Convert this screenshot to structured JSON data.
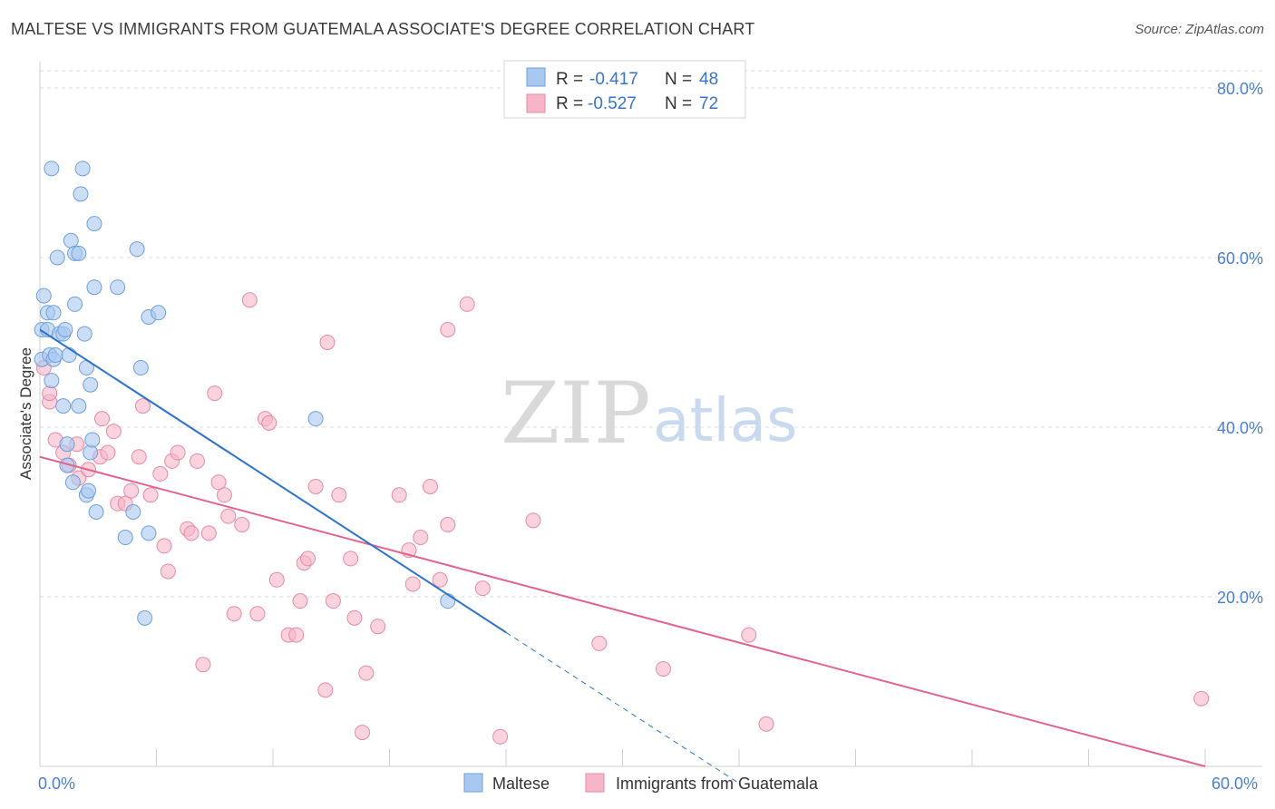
{
  "header": {
    "title": "MALTESE VS IMMIGRANTS FROM GUATEMALA ASSOCIATE'S DEGREE CORRELATION CHART",
    "source": "Source: ZipAtlas.com"
  },
  "watermark": {
    "zip": "ZIP",
    "atlas": "atlas"
  },
  "stats_box": {
    "rows": [
      {
        "r_label": "R =",
        "r_value": "-0.417",
        "n_label": "N =",
        "n_value": "48",
        "color": "#a9c8f0"
      },
      {
        "r_label": "R =",
        "r_value": "-0.527",
        "n_label": "N =",
        "n_value": "72",
        "color": "#f6b6c8"
      }
    ]
  },
  "colors": {
    "maltese_fill": "#a9c8f0",
    "maltese_stroke": "#6f9fdc",
    "maltese_line": "#2f72c9",
    "guatemala_fill": "#f6b6c8",
    "guatemala_stroke": "#e58aa7",
    "guatemala_line": "#e0648e",
    "tick_label": "#4a7fcf",
    "grid": "#dcdcdc"
  },
  "chart_data": {
    "type": "scatter",
    "title": "MALTESE VS IMMIGRANTS FROM GUATEMALA ASSOCIATE'S DEGREE CORRELATION CHART",
    "xlabel": "",
    "ylabel": "Associate's Degree",
    "xlim": [
      0,
      60
    ],
    "ylim": [
      0,
      80
    ],
    "x_tick_labels": [
      "0.0%",
      "60.0%"
    ],
    "y_tick_values": [
      20,
      40,
      60,
      80
    ],
    "y_tick_labels": [
      "20.0%",
      "40.0%",
      "60.0%",
      "80.0%"
    ],
    "grid": "horizontal dashed",
    "legend_position": "bottom-center",
    "series": [
      {
        "name": "Maltese",
        "R": -0.417,
        "N": 48,
        "trend": {
          "x_start": 0,
          "y_start": 51.5,
          "x_end": 24,
          "y_end": 15.8,
          "dashed_to_x": 36,
          "dashed_to_y": -2
        },
        "points": [
          [
            0.1,
            48.0
          ],
          [
            0.1,
            51.5
          ],
          [
            0.2,
            55.5
          ],
          [
            0.4,
            53.5
          ],
          [
            0.4,
            51.5
          ],
          [
            0.5,
            48.5
          ],
          [
            0.6,
            45.5
          ],
          [
            0.7,
            53.5
          ],
          [
            0.7,
            48.0
          ],
          [
            0.8,
            48.5
          ],
          [
            0.9,
            60.0
          ],
          [
            1.0,
            51.0
          ],
          [
            1.2,
            51.0
          ],
          [
            1.2,
            42.5
          ],
          [
            1.3,
            51.5
          ],
          [
            1.4,
            38.0
          ],
          [
            1.4,
            35.5
          ],
          [
            1.5,
            48.5
          ],
          [
            1.6,
            62.0
          ],
          [
            1.7,
            33.5
          ],
          [
            1.8,
            54.5
          ],
          [
            1.8,
            60.5
          ],
          [
            2.0,
            60.5
          ],
          [
            2.0,
            42.5
          ],
          [
            2.1,
            67.5
          ],
          [
            2.2,
            70.5
          ],
          [
            2.3,
            51.0
          ],
          [
            2.4,
            47.0
          ],
          [
            2.4,
            32.0
          ],
          [
            2.5,
            32.5
          ],
          [
            2.6,
            37.0
          ],
          [
            2.6,
            45.0
          ],
          [
            2.7,
            38.5
          ],
          [
            2.8,
            64.0
          ],
          [
            2.8,
            56.5
          ],
          [
            2.9,
            30.0
          ],
          [
            4.0,
            56.5
          ],
          [
            4.4,
            27.0
          ],
          [
            4.8,
            30.0
          ],
          [
            5.0,
            61.0
          ],
          [
            5.2,
            47.0
          ],
          [
            5.4,
            17.5
          ],
          [
            5.6,
            27.5
          ],
          [
            5.6,
            53.0
          ],
          [
            6.1,
            53.5
          ],
          [
            14.2,
            41.0
          ],
          [
            21.0,
            19.5
          ],
          [
            0.6,
            70.5
          ]
        ]
      },
      {
        "name": "Immigrants from Guatemala",
        "R": -0.527,
        "N": 72,
        "trend": {
          "x_start": 0,
          "y_start": 36.5,
          "x_end": 60,
          "y_end": 0
        },
        "points": [
          [
            0.2,
            47.0
          ],
          [
            0.5,
            43.0
          ],
          [
            0.8,
            38.5
          ],
          [
            1.2,
            37.0
          ],
          [
            1.5,
            35.5
          ],
          [
            1.9,
            38.0
          ],
          [
            2.0,
            34.0
          ],
          [
            2.5,
            35.0
          ],
          [
            3.1,
            36.5
          ],
          [
            3.2,
            41.0
          ],
          [
            3.5,
            37.0
          ],
          [
            3.8,
            39.5
          ],
          [
            4.0,
            31.0
          ],
          [
            4.4,
            31.0
          ],
          [
            4.7,
            32.5
          ],
          [
            5.1,
            36.5
          ],
          [
            5.3,
            42.5
          ],
          [
            5.7,
            32.0
          ],
          [
            6.2,
            34.5
          ],
          [
            6.4,
            26.0
          ],
          [
            6.6,
            23.0
          ],
          [
            6.8,
            36.0
          ],
          [
            7.1,
            37.0
          ],
          [
            7.6,
            28.0
          ],
          [
            7.8,
            27.5
          ],
          [
            8.1,
            36.0
          ],
          [
            8.4,
            12.0
          ],
          [
            8.7,
            27.5
          ],
          [
            9.0,
            44.0
          ],
          [
            9.2,
            33.5
          ],
          [
            9.5,
            32.0
          ],
          [
            9.7,
            29.5
          ],
          [
            10.0,
            18.0
          ],
          [
            10.4,
            28.5
          ],
          [
            10.8,
            55.0
          ],
          [
            11.2,
            18.0
          ],
          [
            11.6,
            41.0
          ],
          [
            11.8,
            40.5
          ],
          [
            12.2,
            22.0
          ],
          [
            12.8,
            15.5
          ],
          [
            13.2,
            15.5
          ],
          [
            13.4,
            19.5
          ],
          [
            13.6,
            24.0
          ],
          [
            13.8,
            24.5
          ],
          [
            14.2,
            33.0
          ],
          [
            14.7,
            9.0
          ],
          [
            14.8,
            50.0
          ],
          [
            15.1,
            19.5
          ],
          [
            15.4,
            32.0
          ],
          [
            16.0,
            24.5
          ],
          [
            16.2,
            17.5
          ],
          [
            16.6,
            4.0
          ],
          [
            16.8,
            11.0
          ],
          [
            17.4,
            16.5
          ],
          [
            18.5,
            32.0
          ],
          [
            19.0,
            25.5
          ],
          [
            19.2,
            21.5
          ],
          [
            19.6,
            27.0
          ],
          [
            20.1,
            33.0
          ],
          [
            20.6,
            22.0
          ],
          [
            21.0,
            28.5
          ],
          [
            21.0,
            51.5
          ],
          [
            22.0,
            54.5
          ],
          [
            22.8,
            21.0
          ],
          [
            23.7,
            3.5
          ],
          [
            25.4,
            29.0
          ],
          [
            28.8,
            14.5
          ],
          [
            32.1,
            11.5
          ],
          [
            36.5,
            15.5
          ],
          [
            37.4,
            5.0
          ],
          [
            59.8,
            8.0
          ],
          [
            0.5,
            44.0
          ]
        ]
      }
    ]
  }
}
